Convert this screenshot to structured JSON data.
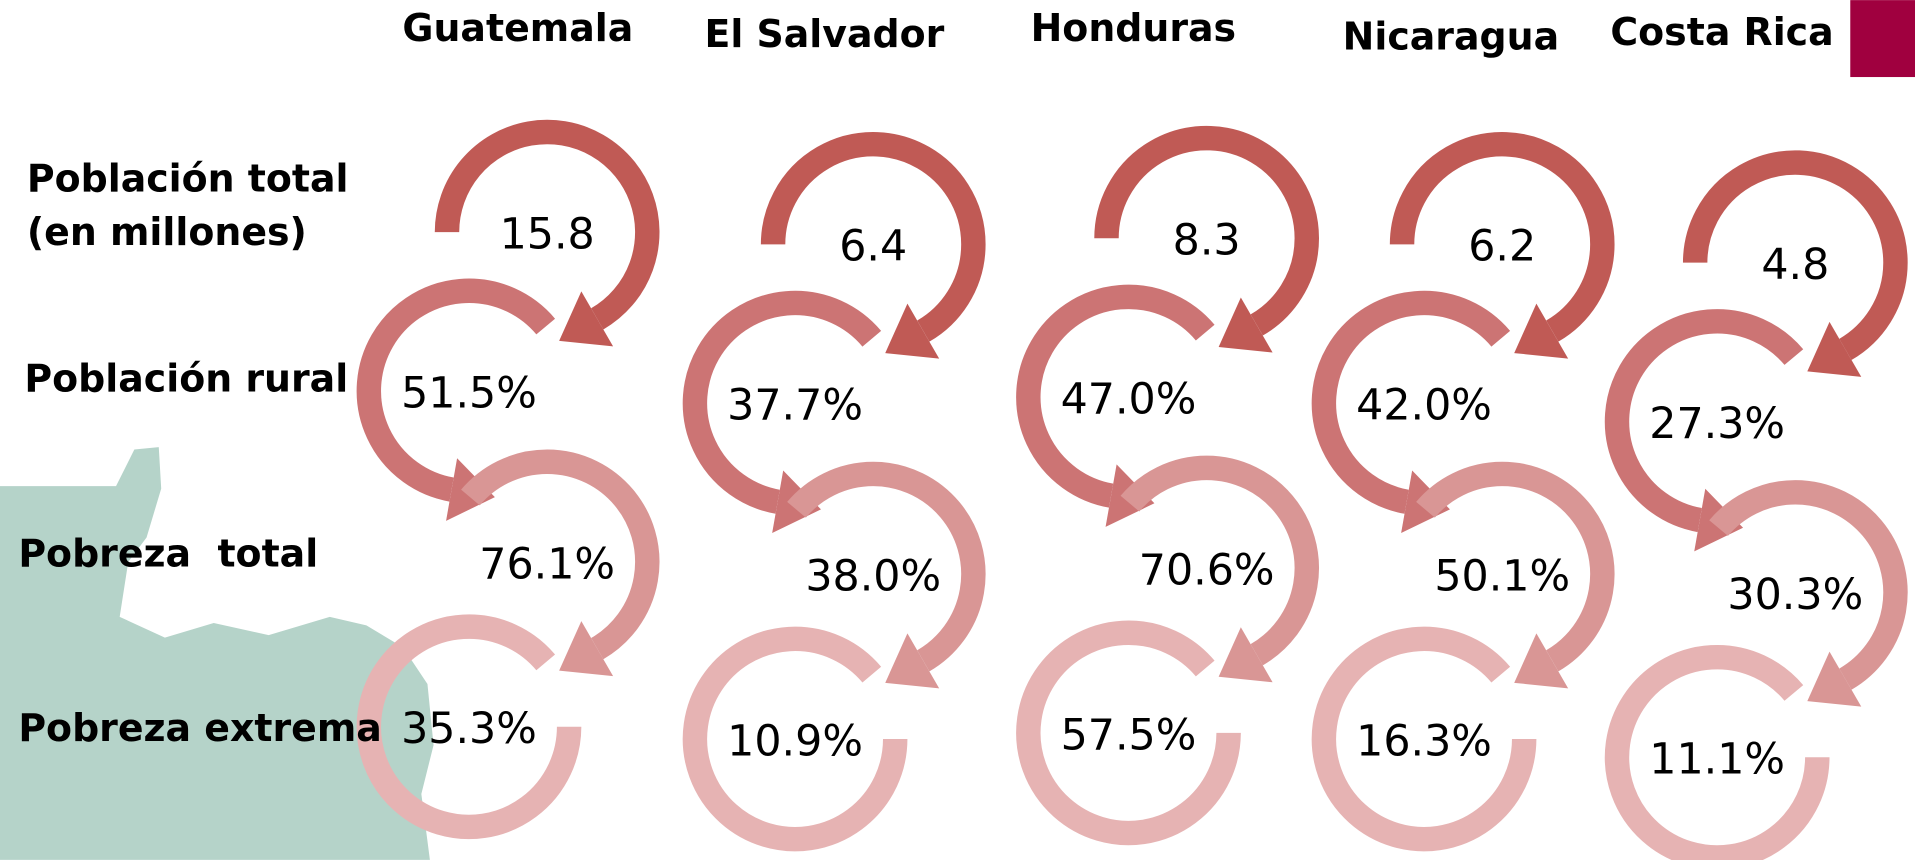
{
  "header": {
    "columns": [
      "Guatemala",
      "El Salvador",
      "Honduras",
      "Nicaragua",
      "Costa Rica"
    ]
  },
  "rows": [
    {
      "label": [
        "Población total",
        "(en millones)"
      ],
      "values": [
        "15.8",
        "6.4",
        "8.3",
        "6.2",
        "4.8"
      ]
    },
    {
      "label": [
        "Población rural"
      ],
      "values": [
        "51.5%",
        "37.7%",
        "47.0%",
        "42.0%",
        "27.3%"
      ]
    },
    {
      "label": [
        "Pobreza  total"
      ],
      "values": [
        "76.1%",
        "38.0%",
        "70.6%",
        "50.1%",
        "30.3%"
      ]
    },
    {
      "label": [
        "Pobreza extrema"
      ],
      "values": [
        "35.3%",
        "10.9%",
        "57.5%",
        "16.3%",
        "11.1%"
      ]
    }
  ]
}
